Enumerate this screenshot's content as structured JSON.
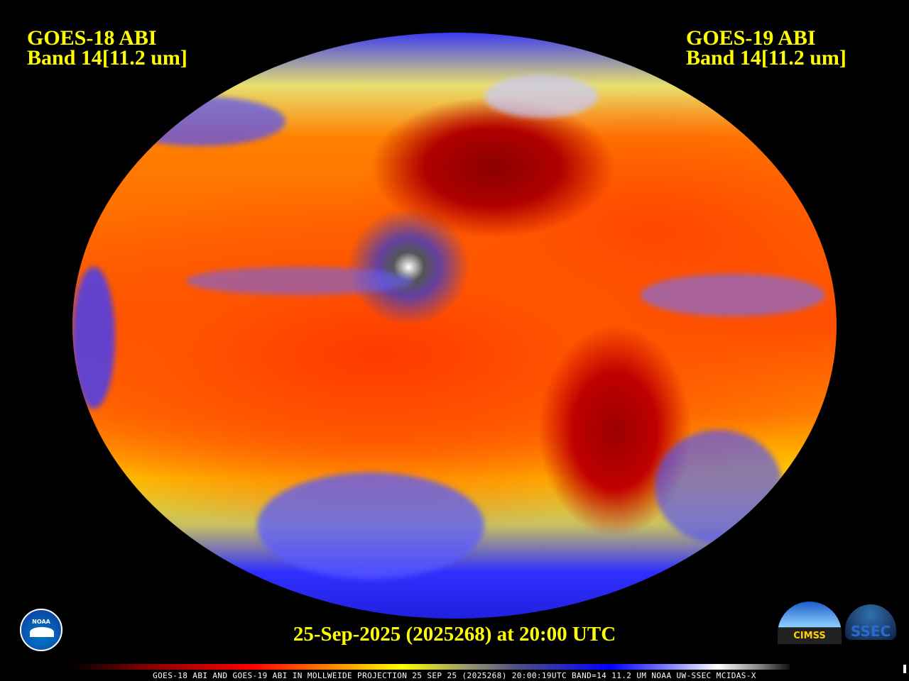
{
  "header": {
    "left_title": [
      "GOES-18 ABI",
      "Band 14[11.2 um]"
    ],
    "right_title": [
      "GOES-19 ABI",
      "Band 14[11.2 um]"
    ]
  },
  "image": {
    "description_type": "infrared satellite composite",
    "projection": "Mollweide"
  },
  "footer": {
    "date_line": "25-Sep-2025 (2025268) at 20:00 UTC",
    "caption": "GOES-18 ABI AND GOES-19 ABI IN MOLLWEIDE PROJECTION 25 SEP 25 (2025268) 20:00:19UTC BAND=14 11.2 UM NOAA UW-SSEC MCIDAS-X"
  },
  "colorbar": {
    "colors": [
      "#000000",
      "#800000",
      "#ff0000",
      "#ff9000",
      "#ffff00",
      "#9a9a70",
      "#0000ff",
      "#9090ff",
      "#ffffff",
      "#808080",
      "#101010"
    ]
  },
  "logos": {
    "noaa": "NOAA",
    "cimss": "CIMSS",
    "ssec": "SSEC"
  }
}
